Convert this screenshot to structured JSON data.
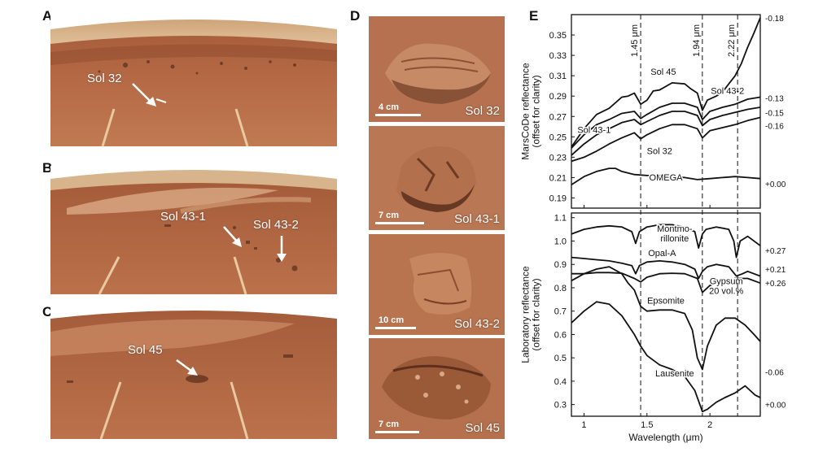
{
  "panels": {
    "a": {
      "letter": "A",
      "sol": "Sol 32"
    },
    "b": {
      "letter": "B",
      "sol1": "Sol 43-1",
      "sol2": "Sol 43-2"
    },
    "c": {
      "letter": "C",
      "sol": "Sol 45"
    },
    "d": {
      "letter": "D",
      "tiles": [
        {
          "sol": "Sol 32",
          "scale": "4 cm"
        },
        {
          "sol": "Sol 43-1",
          "scale": "7 cm"
        },
        {
          "sol": "Sol 43-2",
          "scale": "10 cm"
        },
        {
          "sol": "Sol 45",
          "scale": "7 cm"
        }
      ]
    },
    "e": {
      "letter": "E"
    }
  },
  "colors": {
    "mars_soil": "#b56a45",
    "mars_dark": "#8e4a2d",
    "sky": "#d8b48c",
    "line": "#111111",
    "noise": "#bbbbbb"
  },
  "chart_data": {
    "type": "line",
    "xlabel": "Wavelength (μm)",
    "xlim": [
      0.9,
      2.4
    ],
    "x_ticks": [
      "1",
      "1.5",
      "2"
    ],
    "x_tick_values": [
      1.0,
      1.5,
      2.0
    ],
    "band_markers": [
      {
        "x": 1.45,
        "label": "1.45 μm"
      },
      {
        "x": 1.94,
        "label": "1.94 μm"
      },
      {
        "x": 2.22,
        "label": "2.22 μm"
      }
    ],
    "top": {
      "ylabel": "MarsCoDe reflectance\n(offset for clarity)",
      "ylim": [
        0.18,
        0.37
      ],
      "y_ticks": [
        "0.19",
        "0.21",
        "0.23",
        "0.25",
        "0.27",
        "0.29",
        "0.31",
        "0.33",
        "0.35"
      ],
      "y_tick_values": [
        0.19,
        0.21,
        0.23,
        0.25,
        0.27,
        0.29,
        0.31,
        0.33,
        0.35
      ],
      "right_offsets": [
        {
          "label": "-0.18",
          "y": 0.367
        },
        {
          "label": "-0.13",
          "y": 0.288
        },
        {
          "label": "-0.15",
          "y": 0.274
        },
        {
          "label": "-0.16",
          "y": 0.261
        },
        {
          "label": "+0.00",
          "y": 0.204
        }
      ],
      "series": [
        {
          "name": "Sol 45",
          "label_x": 1.63,
          "label_y": 0.311,
          "x": [
            0.9,
            1.0,
            1.1,
            1.2,
            1.3,
            1.35,
            1.4,
            1.45,
            1.5,
            1.55,
            1.6,
            1.7,
            1.8,
            1.85,
            1.9,
            1.94,
            1.98,
            2.05,
            2.1,
            2.15,
            2.2,
            2.25,
            2.3,
            2.35,
            2.4
          ],
          "y": [
            0.24,
            0.258,
            0.272,
            0.278,
            0.289,
            0.29,
            0.293,
            0.282,
            0.286,
            0.295,
            0.296,
            0.303,
            0.302,
            0.297,
            0.293,
            0.276,
            0.286,
            0.29,
            0.294,
            0.302,
            0.31,
            0.322,
            0.338,
            0.352,
            0.367
          ]
        },
        {
          "name": "Sol 43-2",
          "label_x": 2.14,
          "label_y": 0.292,
          "x": [
            0.9,
            1.0,
            1.1,
            1.2,
            1.3,
            1.4,
            1.45,
            1.5,
            1.6,
            1.7,
            1.8,
            1.9,
            1.94,
            2.0,
            2.1,
            2.2,
            2.3,
            2.4
          ],
          "y": [
            0.239,
            0.252,
            0.262,
            0.267,
            0.273,
            0.275,
            0.268,
            0.272,
            0.279,
            0.283,
            0.283,
            0.279,
            0.267,
            0.275,
            0.279,
            0.282,
            0.287,
            0.289
          ]
        },
        {
          "name": "Sol 43-1",
          "label_x": 1.08,
          "label_y": 0.254,
          "x": [
            0.9,
            1.0,
            1.1,
            1.2,
            1.3,
            1.4,
            1.45,
            1.5,
            1.6,
            1.7,
            1.8,
            1.9,
            1.94,
            2.0,
            2.1,
            2.2,
            2.3,
            2.4
          ],
          "y": [
            0.232,
            0.243,
            0.252,
            0.258,
            0.264,
            0.267,
            0.262,
            0.265,
            0.271,
            0.275,
            0.275,
            0.271,
            0.261,
            0.267,
            0.271,
            0.274,
            0.277,
            0.279
          ]
        },
        {
          "name": "Sol 32",
          "label_x": 1.6,
          "label_y": 0.233,
          "x": [
            0.9,
            1.0,
            1.1,
            1.2,
            1.3,
            1.4,
            1.45,
            1.5,
            1.6,
            1.7,
            1.8,
            1.9,
            1.94,
            2.0,
            2.1,
            2.2,
            2.3,
            2.4
          ],
          "y": [
            0.226,
            0.23,
            0.236,
            0.243,
            0.249,
            0.254,
            0.248,
            0.252,
            0.258,
            0.262,
            0.262,
            0.258,
            0.249,
            0.256,
            0.259,
            0.262,
            0.266,
            0.269
          ]
        },
        {
          "name": "OMEGA",
          "label_x": 1.65,
          "label_y": 0.207,
          "x": [
            0.9,
            1.0,
            1.1,
            1.2,
            1.25,
            1.3,
            1.4,
            1.5,
            1.6,
            1.7,
            1.8,
            1.9,
            2.0,
            2.1,
            2.2,
            2.3,
            2.4
          ],
          "y": [
            0.203,
            0.211,
            0.216,
            0.219,
            0.219,
            0.216,
            0.213,
            0.212,
            0.212,
            0.211,
            0.21,
            0.208,
            0.209,
            0.21,
            0.211,
            0.21,
            0.209
          ]
        }
      ]
    },
    "bottom": {
      "ylabel": "Laboratory reflectance\n(offset for clarity)",
      "ylim": [
        0.25,
        1.12
      ],
      "y_ticks": [
        "0.3",
        "0.4",
        "0.5",
        "0.6",
        "0.7",
        "0.8",
        "0.9",
        "1.0",
        "1.1"
      ],
      "y_tick_values": [
        0.3,
        0.4,
        0.5,
        0.6,
        0.7,
        0.8,
        0.9,
        1.0,
        1.1
      ],
      "right_offsets": [
        {
          "label": "+0.27",
          "y": 0.96
        },
        {
          "label": "+0.21",
          "y": 0.88
        },
        {
          "label": "+0.26",
          "y": 0.82
        },
        {
          "label": "-0.06",
          "y": 0.44
        },
        {
          "label": "+0.00",
          "y": 0.3
        }
      ],
      "series": [
        {
          "name": "Montmo-\nrillonite",
          "label_x": 1.72,
          "label_y": 1.04,
          "x": [
            0.9,
            1.0,
            1.1,
            1.2,
            1.3,
            1.38,
            1.41,
            1.44,
            1.5,
            1.6,
            1.7,
            1.8,
            1.88,
            1.91,
            1.94,
            1.97,
            2.05,
            2.15,
            2.19,
            2.21,
            2.24,
            2.3,
            2.4
          ],
          "y": [
            1.03,
            1.05,
            1.06,
            1.065,
            1.06,
            1.04,
            0.99,
            1.04,
            1.06,
            1.07,
            1.07,
            1.06,
            1.04,
            0.97,
            1.03,
            1.05,
            1.06,
            1.05,
            1.0,
            0.93,
            1.0,
            1.02,
            0.98
          ]
        },
        {
          "name": "Opal-A",
          "label_x": 1.62,
          "label_y": 0.935,
          "x": [
            0.9,
            1.0,
            1.1,
            1.2,
            1.3,
            1.38,
            1.41,
            1.44,
            1.5,
            1.6,
            1.7,
            1.8,
            1.88,
            1.91,
            1.94,
            1.98,
            2.05,
            2.15,
            2.21,
            2.26,
            2.3,
            2.4
          ],
          "y": [
            0.93,
            0.925,
            0.92,
            0.915,
            0.905,
            0.895,
            0.86,
            0.895,
            0.91,
            0.915,
            0.91,
            0.9,
            0.88,
            0.84,
            0.87,
            0.89,
            0.9,
            0.89,
            0.85,
            0.86,
            0.87,
            0.85
          ]
        },
        {
          "name": "Gypsum\n20 vol.%",
          "label_x": 2.13,
          "label_y": 0.815,
          "x": [
            0.9,
            1.0,
            1.1,
            1.2,
            1.3,
            1.4,
            1.45,
            1.5,
            1.6,
            1.7,
            1.8,
            1.9,
            1.94,
            2.0,
            2.1,
            2.2,
            2.3,
            2.4
          ],
          "y": [
            0.86,
            0.86,
            0.865,
            0.865,
            0.862,
            0.84,
            0.825,
            0.845,
            0.86,
            0.862,
            0.86,
            0.84,
            0.78,
            0.81,
            0.83,
            0.84,
            0.84,
            0.82
          ]
        },
        {
          "name": "Epsomite",
          "label_x": 1.65,
          "label_y": 0.732,
          "x": [
            0.9,
            1.0,
            1.1,
            1.2,
            1.3,
            1.35,
            1.4,
            1.45,
            1.5,
            1.6,
            1.7,
            1.8,
            1.86,
            1.9,
            1.94,
            1.98,
            2.05,
            2.12,
            2.2,
            2.28,
            2.35,
            2.4
          ],
          "y": [
            0.83,
            0.86,
            0.88,
            0.89,
            0.86,
            0.82,
            0.79,
            0.72,
            0.7,
            0.705,
            0.705,
            0.69,
            0.62,
            0.5,
            0.45,
            0.55,
            0.64,
            0.67,
            0.67,
            0.64,
            0.6,
            0.57
          ]
        },
        {
          "name": "Lausenite",
          "label_x": 1.72,
          "label_y": 0.42,
          "x": [
            0.9,
            1.0,
            1.1,
            1.2,
            1.3,
            1.4,
            1.45,
            1.5,
            1.6,
            1.7,
            1.8,
            1.88,
            1.94,
            1.98,
            2.05,
            2.12,
            2.2,
            2.28,
            2.32,
            2.36,
            2.4
          ],
          "y": [
            0.65,
            0.7,
            0.74,
            0.73,
            0.68,
            0.6,
            0.55,
            0.51,
            0.47,
            0.45,
            0.42,
            0.36,
            0.27,
            0.28,
            0.31,
            0.33,
            0.35,
            0.38,
            0.36,
            0.34,
            0.33
          ]
        }
      ]
    }
  }
}
